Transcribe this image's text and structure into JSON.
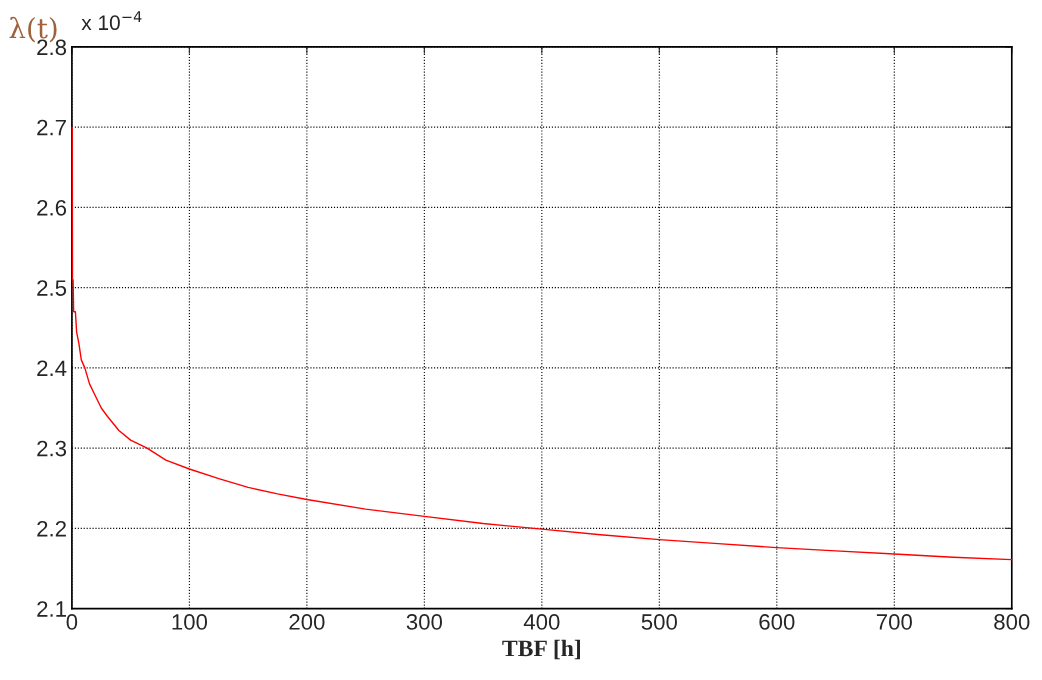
{
  "chart_data": {
    "type": "line",
    "xlabel": "TBF [h]",
    "ylabel": "λ(t)",
    "annotations": [
      "x 10$^{−4}$"
    ],
    "x": [
      0.3,
      0.5,
      1,
      1.5,
      3,
      4,
      6,
      8,
      11,
      15,
      20,
      25,
      30,
      40,
      50,
      64,
      80,
      100,
      125,
      150,
      175,
      200,
      250,
      300,
      350,
      400,
      450,
      500,
      550,
      600,
      650,
      700,
      750,
      800
    ],
    "series": [
      {
        "color": "#ff0000",
        "values": [
          2.7,
          2.51,
          2.51,
          2.47,
          2.47,
          2.445,
          2.43,
          2.41,
          2.4,
          2.38,
          2.365,
          2.35,
          2.34,
          2.322,
          2.31,
          2.3,
          2.285,
          2.274,
          2.262,
          2.251,
          2.243,
          2.236,
          2.224,
          2.215,
          2.206,
          2.199,
          2.192,
          2.186,
          2.181,
          2.176,
          2.172,
          2.168,
          2.164,
          2.161
        ]
      }
    ],
    "xlim": [
      0,
      800
    ],
    "xticks": [
      0,
      100,
      200,
      300,
      400,
      500,
      600,
      700,
      800
    ],
    "ylim": [
      2.1,
      2.8
    ],
    "yticks": [
      2.1,
      2.2,
      2.3,
      2.4,
      2.5,
      2.6,
      2.7,
      2.8
    ],
    "grid": true,
    "line_style": "solid",
    "marker": "none",
    "legend": false
  }
}
